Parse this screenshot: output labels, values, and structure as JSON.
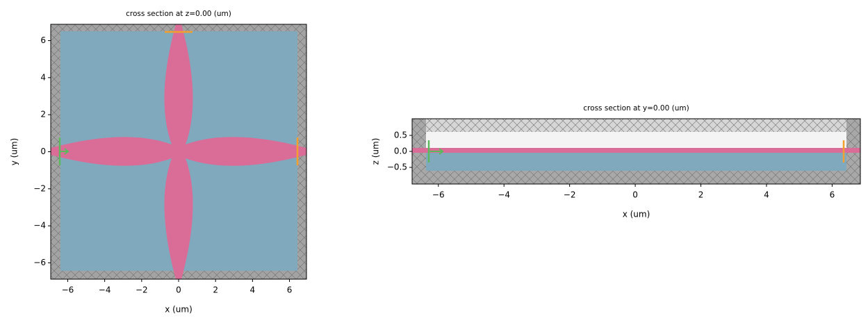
{
  "chart_data": [
    {
      "type": "cross-section",
      "title": "cross section at z=0.00 (um)",
      "xlabel": "x (um)",
      "ylabel": "y (um)",
      "xlim": [
        -6.92,
        6.92
      ],
      "ylim": [
        -6.88,
        6.88
      ],
      "xticks": [
        {
          "value": -6,
          "label": "−6"
        },
        {
          "value": -4,
          "label": "−4"
        },
        {
          "value": -2,
          "label": "−2"
        },
        0,
        2,
        4,
        6
      ],
      "yticks": [
        {
          "value": -6,
          "label": "−6"
        },
        {
          "value": -4,
          "label": "−4"
        },
        {
          "value": -2,
          "label": "−2"
        },
        0,
        2,
        4,
        6
      ]
    },
    {
      "type": "cross-section",
      "title": "cross section at y=0.00 (um)",
      "xlabel": "x (um)",
      "ylabel": "z (um)",
      "xlim": [
        -6.8,
        6.86
      ],
      "ylim": [
        -1.02,
        1.02
      ],
      "xticks": [
        {
          "value": -6,
          "label": "−6"
        },
        {
          "value": -4,
          "label": "−4"
        },
        {
          "value": -2,
          "label": "−2"
        },
        0,
        2,
        4,
        6
      ],
      "yticks": [
        {
          "value": -0.5,
          "label": "−0.5"
        },
        {
          "value": 0,
          "label": "0.0"
        },
        0.5
      ]
    }
  ]
}
